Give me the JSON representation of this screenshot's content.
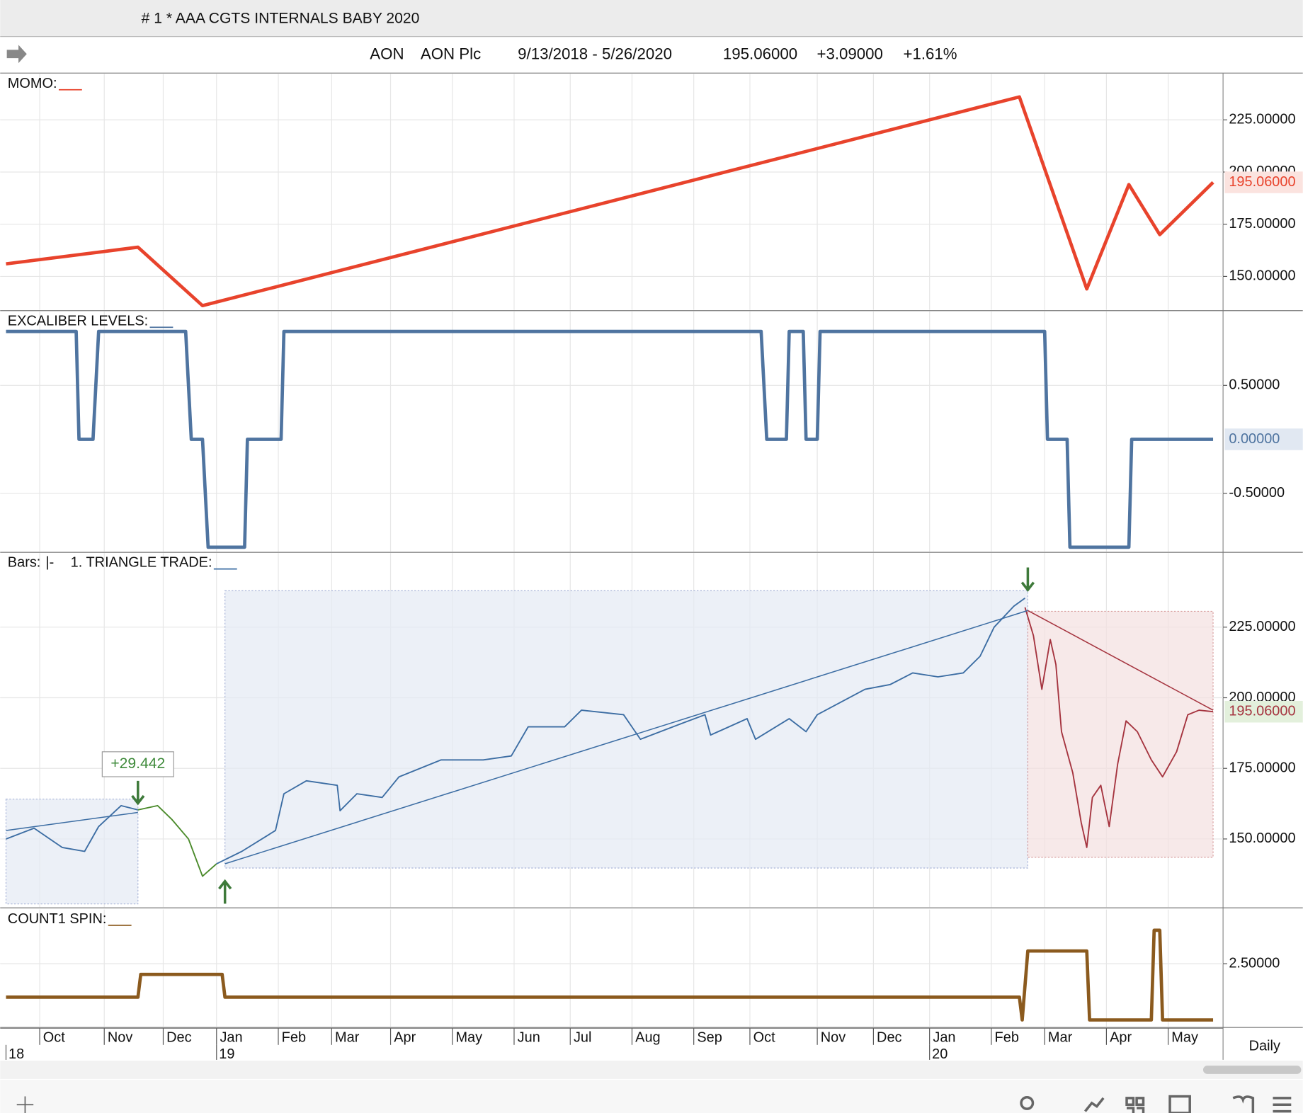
{
  "window": {
    "title": "# 1 * AAA  CGTS INTERNALS BABY 2020"
  },
  "header": {
    "symbol": "AON",
    "name": "AON Plc",
    "range": "9/13/2018 - 5/26/2020",
    "last": "195.06000",
    "change": "+3.09000",
    "pct": "+1.61%"
  },
  "time_axis": {
    "xlim": [
      0,
      430
    ],
    "xticks": [
      {
        "value": 12,
        "label": "Oct"
      },
      {
        "value": 35,
        "label": "Nov"
      },
      {
        "value": 56,
        "label": "Dec"
      },
      {
        "value": 75,
        "label": "Jan"
      },
      {
        "value": 97,
        "label": "Feb"
      },
      {
        "value": 116,
        "label": "Mar"
      },
      {
        "value": 137,
        "label": "Apr"
      },
      {
        "value": 159,
        "label": "May"
      },
      {
        "value": 181,
        "label": "Jun"
      },
      {
        "value": 201,
        "label": "Jul"
      },
      {
        "value": 223,
        "label": "Aug"
      },
      {
        "value": 245,
        "label": "Sep"
      },
      {
        "value": 265,
        "label": "Oct"
      },
      {
        "value": 289,
        "label": "Nov"
      },
      {
        "value": 309,
        "label": "Dec"
      },
      {
        "value": 329,
        "label": "Jan"
      },
      {
        "value": 351,
        "label": "Feb"
      },
      {
        "value": 370,
        "label": "Mar"
      },
      {
        "value": 392,
        "label": "Apr"
      },
      {
        "value": 414,
        "label": "May"
      }
    ],
    "year_ticks": [
      {
        "value": 0,
        "label": "18"
      },
      {
        "value": 75,
        "label": "19"
      },
      {
        "value": 329,
        "label": "20"
      }
    ],
    "period": "Daily"
  },
  "chart_data": [
    {
      "type": "line",
      "titles": [
        "MOMO:"
      ],
      "ylim": [
        134,
        247
      ],
      "yticks": [
        {
          "value": 150,
          "label": "150.00000"
        },
        {
          "value": 175,
          "label": "175.00000"
        },
        {
          "value": 200,
          "label": "200.00000"
        },
        {
          "value": 225,
          "label": "225.00000"
        }
      ],
      "series": [
        {
          "color": "#e8432c",
          "x": [
            0,
            47,
            70,
            361,
            385,
            400,
            411,
            430
          ],
          "values": [
            156,
            164,
            136,
            236,
            144,
            194,
            170,
            195.06
          ]
        }
      ],
      "last_label": "195.06000",
      "last_label_color": "#fbe3df",
      "grid": true
    },
    {
      "type": "line",
      "titles": [
        "EXCALIBER LEVELS:"
      ],
      "ylim": [
        -1.04,
        1.185
      ],
      "yticks": [
        {
          "value": 0.5,
          "label": "0.50000"
        },
        {
          "value": -0.5,
          "label": "-0.50000"
        }
      ],
      "series": [
        {
          "color": "#4f74a0",
          "x": [
            0,
            25,
            26,
            31,
            33,
            64,
            66,
            70,
            72,
            85,
            86,
            98,
            99,
            269,
            271,
            278,
            279,
            284,
            285,
            289,
            290,
            370,
            371,
            378,
            379,
            400,
            401,
            430
          ],
          "values": [
            1,
            1,
            0,
            0,
            1,
            1,
            0,
            0,
            -1,
            -1,
            0,
            0,
            1,
            1,
            0,
            0,
            1,
            1,
            0,
            0,
            1,
            1,
            0,
            0,
            -1,
            -1,
            0,
            0
          ]
        }
      ],
      "last_label": "0.00000",
      "last_label_color": "#e1e8f2",
      "grid": true
    },
    {
      "type": "line",
      "titles": [
        "Bars:",
        "|-",
        "1. TRIANGLE TRADE:"
      ],
      "ylim": [
        125.9,
        251.2
      ],
      "yticks": [
        {
          "value": 150,
          "label": "150.00000"
        },
        {
          "value": 175,
          "label": "175.00000"
        },
        {
          "value": 200,
          "label": "200.00000"
        },
        {
          "value": 225,
          "label": "225.00000"
        }
      ],
      "boxes": [
        {
          "x": [
            0,
            47
          ],
          "y": [
            127,
            164.1
          ],
          "color": "#e4e9f3"
        },
        {
          "x": [
            78,
            364
          ],
          "y": [
            139.7,
            237.9
          ],
          "color": "#e4e9f3"
        },
        {
          "x": [
            364,
            430
          ],
          "y": [
            143.5,
            230.6
          ],
          "color": "#f4e0e0"
        }
      ],
      "trendlines": [
        {
          "x": [
            0,
            47
          ],
          "y": [
            153,
            159.4
          ],
          "color": "#3c6da3"
        },
        {
          "x": [
            78,
            364
          ],
          "y": [
            141.2,
            230.9
          ],
          "color": "#3c6da3"
        },
        {
          "x": [
            364,
            430
          ],
          "y": [
            230.9,
            195.6
          ],
          "color": "#a5343f"
        }
      ],
      "series": [
        {
          "color": "#3c6da3",
          "x": [
            0,
            10,
            20,
            28,
            33,
            41,
            47
          ],
          "values": [
            150,
            153.8,
            147,
            145.6,
            154.4,
            161.8,
            160.3
          ]
        },
        {
          "color": "#4a8a2a",
          "x": [
            47,
            54,
            59,
            65,
            70,
            75
          ],
          "values": [
            160.3,
            161.8,
            157,
            150,
            136.8,
            141.2
          ]
        },
        {
          "color": "#3c6da3",
          "x": [
            75,
            84,
            96,
            99,
            107,
            118,
            119,
            125,
            134,
            140,
            155,
            170,
            180,
            186,
            199,
            205,
            220,
            226,
            241,
            249,
            251,
            264,
            267,
            279,
            285,
            289,
            306,
            315,
            323,
            332,
            341,
            347,
            352,
            359,
            363
          ],
          "values": [
            141.2,
            145.6,
            153,
            166,
            170.6,
            169,
            160,
            166,
            164.7,
            172,
            178,
            178,
            179.4,
            189.7,
            189.7,
            195.6,
            194,
            185.3,
            191,
            194,
            186.8,
            192.6,
            185.3,
            192.6,
            188,
            194,
            203,
            204.7,
            208.8,
            207.4,
            208.8,
            214.7,
            225,
            232.4,
            235.3
          ]
        },
        {
          "color": "#a5343f",
          "x": [
            363,
            366,
            369,
            372,
            374,
            376,
            380,
            383,
            385,
            387,
            390,
            393,
            396,
            399,
            403,
            408,
            412,
            417,
            421,
            425,
            430
          ],
          "values": [
            232,
            222,
            203,
            220.6,
            211.8,
            188,
            173.5,
            155.9,
            147,
            164.7,
            169,
            154.4,
            176.5,
            191.8,
            188,
            178,
            172,
            180.9,
            194,
            195.6,
            195.06
          ]
        }
      ],
      "annotation": "+29.442",
      "last_label": "195.06000",
      "last_label_color": "#e3f0dc",
      "grid": true
    },
    {
      "type": "line",
      "titles": [
        "COUNT1 SPIN:"
      ],
      "ylim": [
        1.56,
        3.31
      ],
      "yticks": [
        {
          "value": 2.5,
          "label": "2.50000"
        }
      ],
      "series": [
        {
          "color": "#8b5a1e",
          "x": [
            0,
            47,
            48,
            77,
            78,
            361,
            362,
            364,
            385,
            386,
            408,
            409,
            411,
            412,
            430
          ],
          "values": [
            2,
            2,
            2.34,
            2.34,
            2,
            2,
            1.66,
            2.69,
            2.69,
            1.66,
            1.66,
            3,
            3,
            1.66,
            1.66
          ]
        }
      ],
      "grid": true
    }
  ]
}
